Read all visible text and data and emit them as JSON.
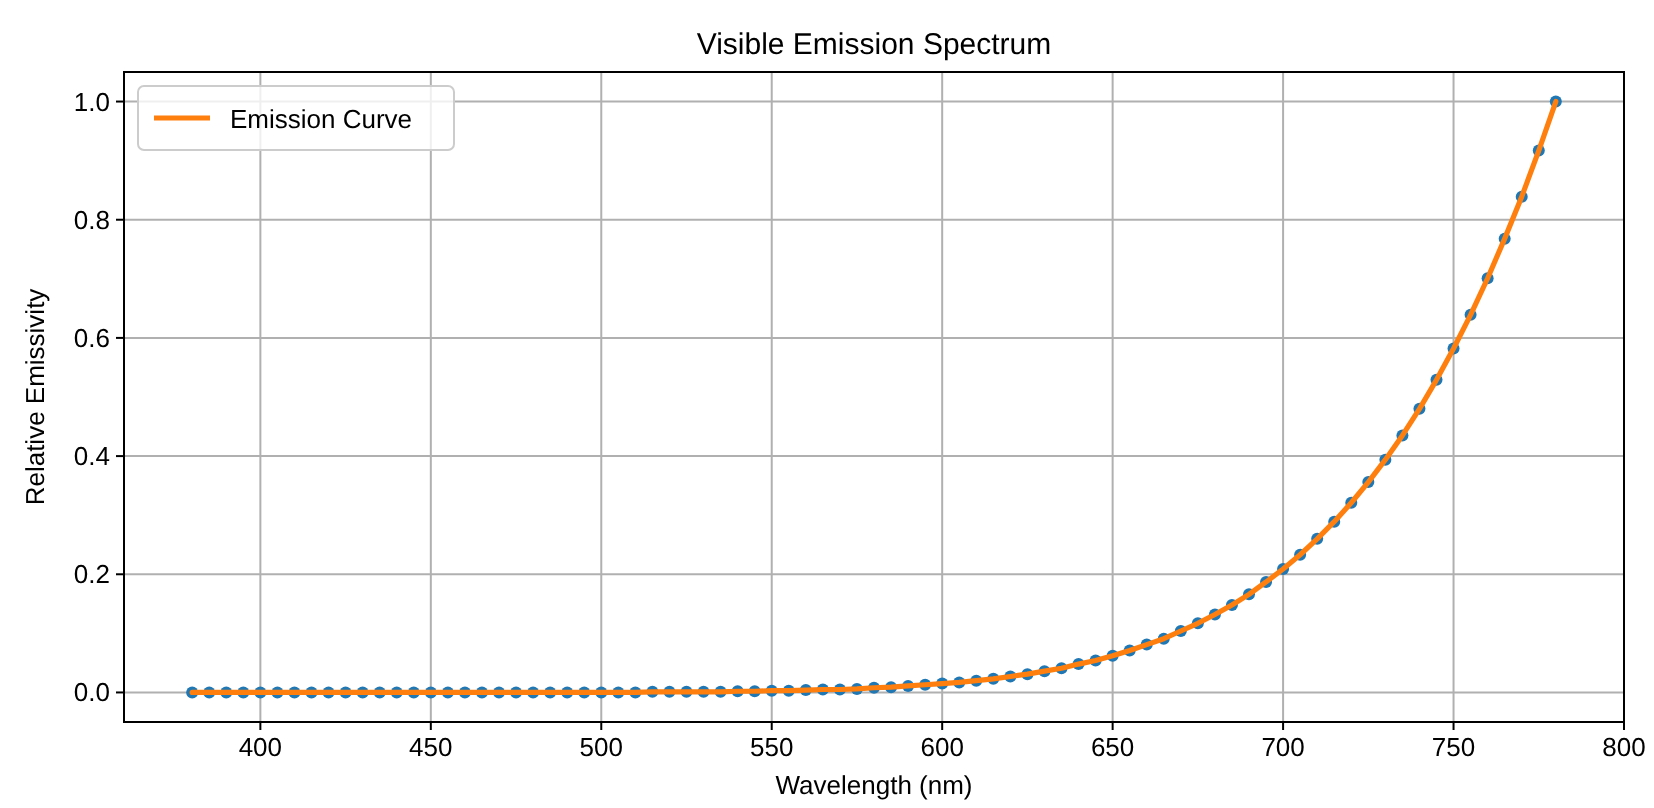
{
  "chart_data": {
    "type": "line",
    "title": "Visible Emission Spectrum",
    "xlabel": "Wavelength (nm)",
    "ylabel": "Relative Emissivity",
    "x": [
      380,
      385,
      390,
      395,
      400,
      405,
      410,
      415,
      420,
      425,
      430,
      435,
      440,
      445,
      450,
      455,
      460,
      465,
      470,
      475,
      480,
      485,
      490,
      495,
      500,
      505,
      510,
      515,
      520,
      525,
      530,
      535,
      540,
      545,
      550,
      555,
      560,
      565,
      570,
      575,
      580,
      585,
      590,
      595,
      600,
      605,
      610,
      615,
      620,
      625,
      630,
      635,
      640,
      645,
      650,
      655,
      660,
      665,
      670,
      675,
      680,
      685,
      690,
      695,
      700,
      705,
      710,
      715,
      720,
      725,
      730,
      735,
      740,
      745,
      750,
      755,
      760,
      765,
      770,
      775,
      780
    ],
    "series": [
      {
        "type": "scatter",
        "color": "#1f77b4",
        "marker": "circle",
        "values": [
          0,
          0,
          0,
          0,
          0,
          0,
          0,
          0,
          0,
          0,
          0,
          0,
          0,
          0,
          0,
          0,
          0,
          0,
          0,
          0,
          0,
          0,
          0,
          0,
          0,
          0,
          0,
          0.001,
          0.001,
          0.001,
          0.001,
          0.001,
          0.002,
          0.002,
          0.003,
          0.003,
          0.004,
          0.005,
          0.005,
          0.006,
          0.008,
          0.009,
          0.011,
          0.013,
          0.015,
          0.017,
          0.02,
          0.023,
          0.027,
          0.031,
          0.036,
          0.041,
          0.048,
          0.054,
          0.062,
          0.071,
          0.081,
          0.091,
          0.104,
          0.117,
          0.132,
          0.148,
          0.166,
          0.187,
          0.209,
          0.233,
          0.26,
          0.289,
          0.321,
          0.356,
          0.394,
          0.435,
          0.48,
          0.529,
          0.582,
          0.639,
          0.701,
          0.768,
          0.839,
          0.917,
          1
        ]
      },
      {
        "name": "Emission Curve",
        "color": "#ff7f0e",
        "line_style": "solid",
        "values": [
          0,
          0,
          0,
          0,
          0,
          0,
          0,
          0,
          0,
          0,
          0,
          0,
          0,
          0,
          0,
          0,
          0,
          0,
          0,
          0,
          0,
          0,
          0,
          0,
          0,
          0,
          0,
          0.001,
          0.001,
          0.001,
          0.001,
          0.001,
          0.002,
          0.002,
          0.003,
          0.003,
          0.004,
          0.005,
          0.005,
          0.006,
          0.008,
          0.009,
          0.011,
          0.013,
          0.015,
          0.017,
          0.02,
          0.023,
          0.027,
          0.031,
          0.036,
          0.041,
          0.048,
          0.054,
          0.062,
          0.071,
          0.081,
          0.091,
          0.104,
          0.117,
          0.132,
          0.148,
          0.166,
          0.187,
          0.209,
          0.233,
          0.26,
          0.289,
          0.321,
          0.356,
          0.394,
          0.435,
          0.48,
          0.529,
          0.582,
          0.639,
          0.701,
          0.768,
          0.839,
          0.917,
          1
        ]
      }
    ],
    "xlim": [
      360,
      800
    ],
    "xticks": [
      400,
      450,
      500,
      550,
      600,
      650,
      700,
      750,
      800
    ],
    "ylim": [
      -0.05,
      1.05
    ],
    "yticks": [
      {
        "value": 0,
        "label": "0.0"
      },
      {
        "value": 0.2,
        "label": "0.2"
      },
      {
        "value": 0.4,
        "label": "0.4"
      },
      {
        "value": 0.6,
        "label": "0.6"
      },
      {
        "value": 0.8,
        "label": "0.8"
      },
      {
        "value": 1,
        "label": "1.0"
      }
    ],
    "grid": true,
    "legend": "top left"
  }
}
